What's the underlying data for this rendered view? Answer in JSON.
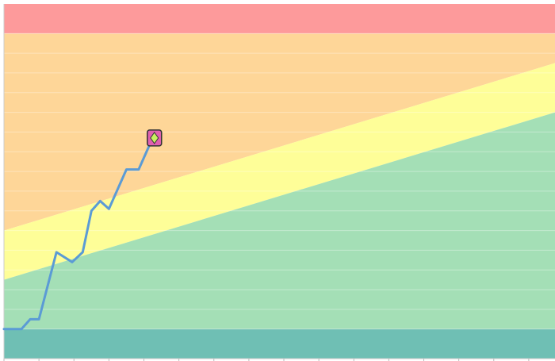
{
  "chart_data": {
    "type": "line",
    "title": "",
    "xlabel": "",
    "ylabel": "",
    "xlim": [
      0,
      31.5
    ],
    "ylim": [
      -1.5,
      16.5
    ],
    "grid": true,
    "x_ticks": [
      0,
      2,
      4,
      6,
      8,
      10,
      12,
      14,
      16,
      18,
      20,
      22,
      24,
      26,
      28,
      30
    ],
    "y_gridlines": [
      0,
      1,
      2,
      3,
      4,
      5,
      6,
      7,
      8,
      9,
      10,
      11,
      12,
      13,
      14,
      15
    ],
    "bands": [
      {
        "name": "",
        "color": "#fd9a9b",
        "polygon": [
          [
            0,
            15
          ],
          [
            31.5,
            15
          ],
          [
            31.5,
            16.5
          ],
          [
            0,
            16.5
          ]
        ]
      },
      {
        "name": "",
        "color": "#fed698",
        "polygon": [
          [
            0,
            5
          ],
          [
            31.5,
            13.5
          ],
          [
            31.5,
            15
          ],
          [
            0,
            15
          ]
        ]
      },
      {
        "name": "",
        "color": "#fefe98",
        "polygon": [
          [
            0,
            2.5
          ],
          [
            31.5,
            11
          ],
          [
            31.5,
            13.5
          ],
          [
            0,
            5
          ]
        ]
      },
      {
        "name": "",
        "color": "#a4dfb6",
        "polygon": [
          [
            0,
            0
          ],
          [
            31.5,
            0
          ],
          [
            31.5,
            11
          ],
          [
            0,
            2.5
          ]
        ]
      },
      {
        "name": "",
        "color": "#6fbfb4",
        "polygon": [
          [
            0,
            -1.5
          ],
          [
            31.5,
            -1.5
          ],
          [
            31.5,
            0
          ],
          [
            0,
            0
          ]
        ]
      }
    ],
    "series": [
      {
        "name": "",
        "color": "#5b9bd5",
        "x": [
          0,
          1,
          1.5,
          2,
          3,
          3.9,
          4.5,
          5,
          5.5,
          6,
          7,
          7.7,
          8.5
        ],
        "y": [
          0,
          0,
          0.5,
          0.5,
          3.9,
          3.4,
          3.9,
          6.0,
          6.5,
          6.1,
          8.1,
          8.1,
          9.7
        ]
      }
    ],
    "marker": {
      "x": 8.6,
      "y": 9.7,
      "color": "#e060b0",
      "inner_color": "#c8f060",
      "shape": "diamond-in-square"
    }
  }
}
